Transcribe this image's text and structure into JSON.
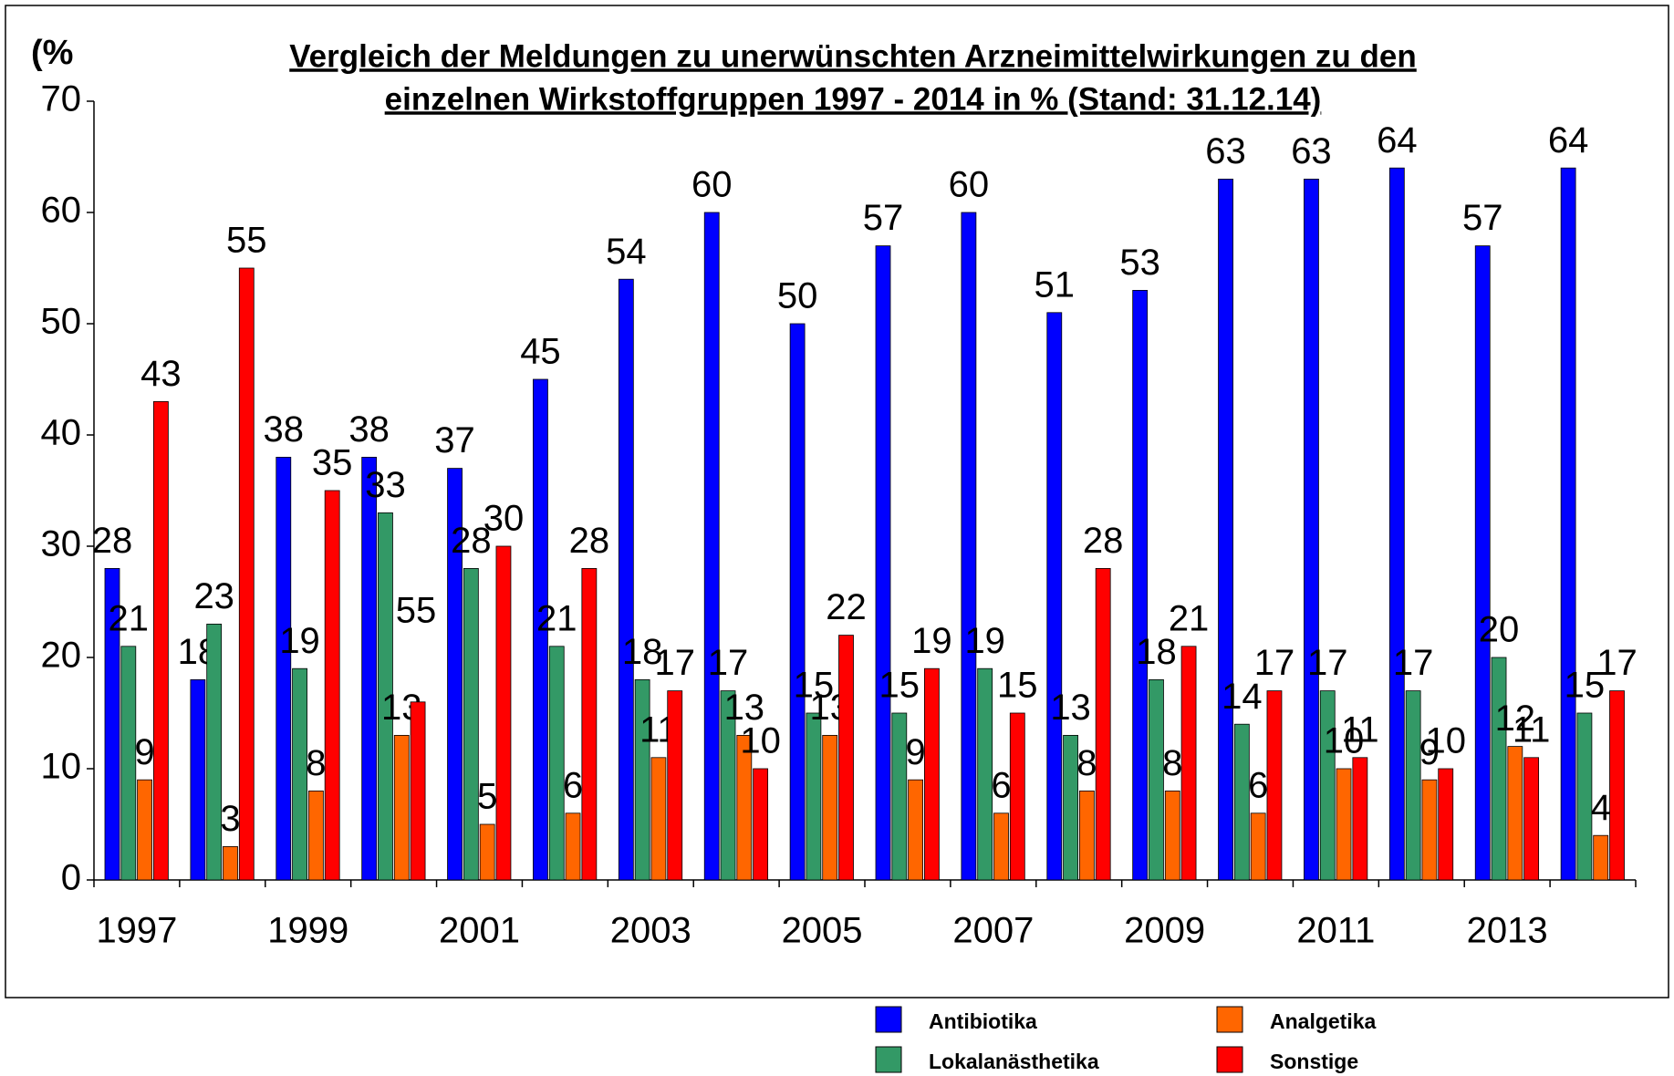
{
  "chart_data": {
    "type": "bar",
    "title": "Vergleich der Meldungen zu unerwünschten Arzneimittelwirkungen zu den",
    "subtitle": "einzelnen Wirkstoffgruppen 1997 - 2014 in % (Stand: 31.12.14)",
    "y_label": "(%",
    "categories": [
      "1997",
      null,
      "1999",
      null,
      "2001",
      null,
      "2003",
      null,
      "2005",
      null,
      "2007",
      null,
      "2009",
      null,
      "2011",
      null,
      "2013",
      null
    ],
    "series": [
      {
        "name": "Antibiotika",
        "color": "#0000ff",
        "values": [
          28,
          18,
          38,
          38,
          37,
          45,
          54,
          60,
          50,
          57,
          60,
          51,
          53,
          63,
          63,
          64,
          57,
          64
        ]
      },
      {
        "name": "Lokalanästhetika",
        "color": "#339966",
        "values": [
          21,
          23,
          19,
          33,
          28,
          21,
          18,
          17,
          15,
          15,
          19,
          13,
          18,
          14,
          17,
          17,
          20,
          15
        ]
      },
      {
        "name": "Analgetika",
        "color": "#ff6600",
        "values": [
          9,
          3,
          8,
          13,
          5,
          6,
          11,
          13,
          13,
          9,
          6,
          8,
          8,
          6,
          10,
          9,
          12,
          4
        ]
      },
      {
        "name": "Sonstige",
        "color": "#ff0000",
        "values": [
          43,
          55,
          35,
          16,
          30,
          28,
          17,
          10,
          22,
          19,
          15,
          28,
          21,
          17,
          11,
          10,
          11,
          17
        ],
        "value_labels": [
          "43",
          "55",
          "35",
          null,
          "30",
          "28",
          "17",
          "10",
          "22",
          "19",
          "15",
          "28",
          "21",
          "17",
          "11",
          "10",
          "11",
          "17"
        ]
      }
    ],
    "annotations": [
      "55"
    ],
    "ylim": [
      0,
      70
    ],
    "yticks": [
      0,
      10,
      20,
      30,
      40,
      50,
      60,
      70
    ],
    "legend": "bottom"
  }
}
